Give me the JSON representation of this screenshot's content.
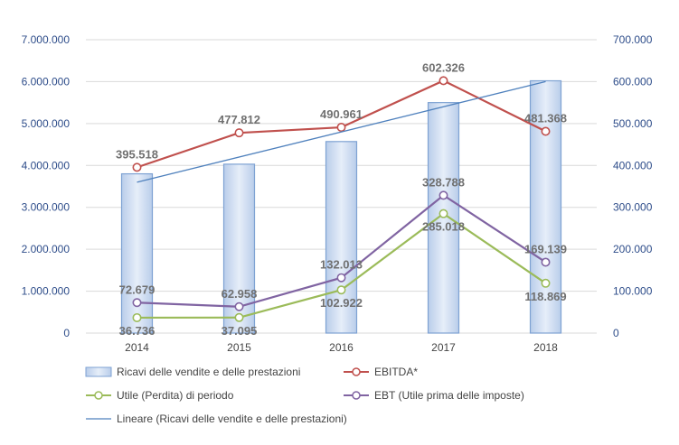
{
  "chart_data": {
    "type": "bar+line",
    "categories": [
      "2014",
      "2015",
      "2016",
      "2017",
      "2018"
    ],
    "y_left": {
      "min": 0,
      "max": 7000000,
      "step": 1000000,
      "ticks": [
        "0",
        "1.000.000",
        "2.000.000",
        "3.000.000",
        "4.000.000",
        "5.000.000",
        "6.000.000",
        "7.000.000"
      ]
    },
    "y_right": {
      "min": 0,
      "max": 700000,
      "step": 100000,
      "ticks": [
        "0",
        "100.000",
        "200.000",
        "300.000",
        "400.000",
        "500.000",
        "600.000",
        "700.000"
      ]
    },
    "grid": true,
    "legend_position": "bottom",
    "series": [
      {
        "name": "Ricavi delle vendite e delle prestazioni",
        "kind": "bar",
        "axis": "left",
        "values": [
          3800000,
          4030000,
          4570000,
          5500000,
          6020000
        ],
        "labels": [],
        "color": "#c5d6ef",
        "stroke": "#7ea2d3"
      },
      {
        "name": "EBITDA*",
        "kind": "line",
        "axis": "right",
        "values": [
          395518,
          477812,
          490961,
          602326,
          481368
        ],
        "labels": [
          "395.518",
          "477.812",
          "490.961",
          "602.326",
          "481.368"
        ],
        "label_side": [
          "above",
          "above",
          "above",
          "above",
          "above"
        ],
        "color": "#c0504d"
      },
      {
        "name": "Utile (Perdita) di periodo",
        "kind": "line",
        "axis": "right",
        "values": [
          36736,
          37095,
          102922,
          285018,
          118869
        ],
        "labels": [
          "36.736",
          "37.095",
          "102.922",
          "285.018",
          "118.869"
        ],
        "label_side": [
          "below",
          "below",
          "below",
          "below",
          "below"
        ],
        "color": "#9bbb59"
      },
      {
        "name": "EBT (Utile prima delle imposte)",
        "kind": "line",
        "axis": "right",
        "values": [
          72679,
          62958,
          132013,
          328788,
          169139
        ],
        "labels": [
          "72.679",
          "62.958",
          "132.013",
          "328.788",
          "169.139"
        ],
        "label_side": [
          "above",
          "above",
          "above",
          "above",
          "above"
        ],
        "color": "#8064a2"
      },
      {
        "name": "Lineare (Ricavi delle vendite e delle prestazioni)",
        "kind": "trendline",
        "axis": "left",
        "values": [
          3600000,
          4200000,
          4800000,
          5400000,
          6000000
        ],
        "labels": [],
        "color": "#4f81bd"
      }
    ]
  }
}
